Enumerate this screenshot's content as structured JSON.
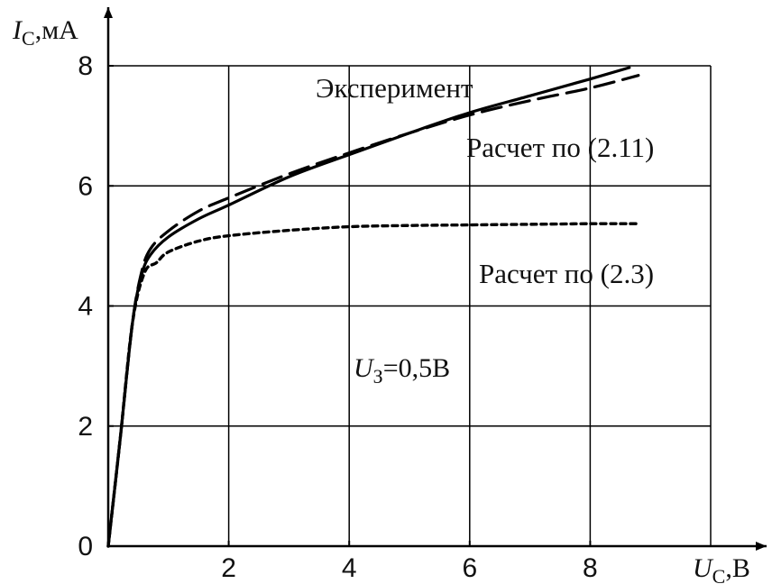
{
  "chart_data": {
    "type": "line",
    "xlabel": {
      "symbol": "U",
      "subscript": "C",
      "unit": ",В"
    },
    "ylabel": {
      "symbol": "I",
      "subscript": "C",
      "unit": ",мА"
    },
    "xlim": [
      0,
      10
    ],
    "ylim": [
      0,
      8
    ],
    "x_ticks": [
      2,
      4,
      6,
      8
    ],
    "y_ticks": [
      0,
      2,
      4,
      6,
      8
    ],
    "grid": true,
    "colors": {
      "line": "#000000",
      "grid": "#000000"
    },
    "series": [
      {
        "name": "Эксперимент",
        "style": "solid",
        "points": [
          [
            0.0,
            0.0
          ],
          [
            0.2,
            1.8
          ],
          [
            0.4,
            3.7
          ],
          [
            0.55,
            4.5
          ],
          [
            0.7,
            4.85
          ],
          [
            1.0,
            5.15
          ],
          [
            1.5,
            5.45
          ],
          [
            2.0,
            5.68
          ],
          [
            3.0,
            6.15
          ],
          [
            4.0,
            6.52
          ],
          [
            5.0,
            6.88
          ],
          [
            6.0,
            7.22
          ],
          [
            7.0,
            7.5
          ],
          [
            8.0,
            7.78
          ],
          [
            8.65,
            7.97
          ]
        ]
      },
      {
        "name": "Расчет по (2.11)",
        "style": "dashed",
        "points": [
          [
            0.0,
            0.0
          ],
          [
            0.2,
            1.8
          ],
          [
            0.4,
            3.7
          ],
          [
            0.55,
            4.55
          ],
          [
            0.7,
            4.95
          ],
          [
            1.0,
            5.25
          ],
          [
            1.5,
            5.58
          ],
          [
            2.0,
            5.8
          ],
          [
            3.0,
            6.2
          ],
          [
            4.0,
            6.55
          ],
          [
            5.0,
            6.88
          ],
          [
            6.0,
            7.18
          ],
          [
            7.0,
            7.42
          ],
          [
            8.0,
            7.63
          ],
          [
            8.8,
            7.84
          ]
        ]
      },
      {
        "name": "Расчет по (2.3)",
        "style": "dotted",
        "points": [
          [
            0.0,
            0.0
          ],
          [
            0.2,
            1.8
          ],
          [
            0.4,
            3.7
          ],
          [
            0.6,
            4.55
          ],
          [
            0.8,
            4.72
          ],
          [
            1.0,
            4.9
          ],
          [
            1.5,
            5.08
          ],
          [
            2.0,
            5.17
          ],
          [
            3.0,
            5.26
          ],
          [
            4.0,
            5.32
          ],
          [
            5.0,
            5.34
          ],
          [
            6.0,
            5.35
          ],
          [
            7.0,
            5.36
          ],
          [
            8.0,
            5.37
          ],
          [
            8.8,
            5.37
          ]
        ]
      }
    ],
    "annotation": {
      "symbol": "U",
      "subscript": "З",
      "text": "=0,5В"
    }
  }
}
